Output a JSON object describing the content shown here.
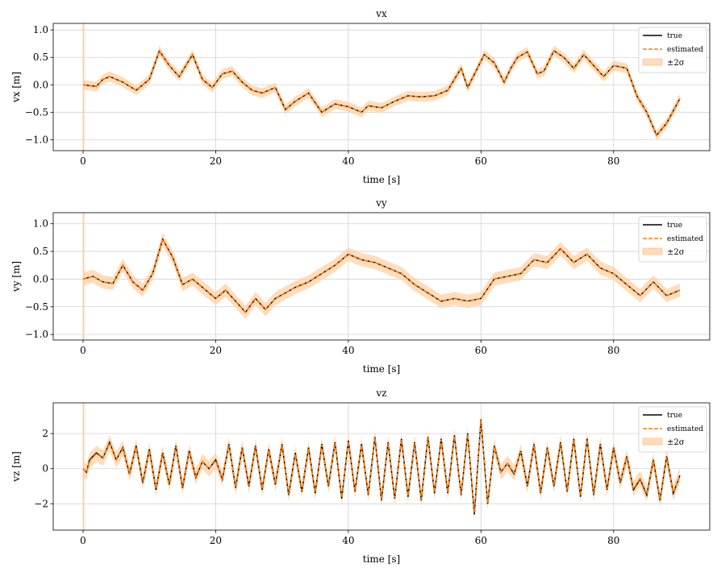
{
  "figure": {
    "background": "#ffffff"
  },
  "legend_labels": {
    "true": "true",
    "estimated": "estimated",
    "band": "±2σ"
  },
  "colors": {
    "true": "#000000",
    "estimated": "#ff7f0e",
    "band": "#ffcf9f",
    "grid": "#d3d3d3"
  },
  "chart_data": [
    {
      "type": "line",
      "title": "vx",
      "xlabel": "time [s]",
      "ylabel": "vx [m]",
      "xlim": [
        -4.5,
        94.5
      ],
      "ylim": [
        -1.2,
        1.12
      ],
      "xticks": [
        0,
        20,
        40,
        60,
        80
      ],
      "xtick_labels": [
        "0",
        "20",
        "40",
        "60",
        "80"
      ],
      "yticks": [
        -1.0,
        -0.5,
        0.0,
        0.5,
        1.0
      ],
      "ytick_labels": [
        "−1.0",
        "−0.5",
        "0.0",
        "0.5",
        "1.0"
      ],
      "grid": true,
      "legend": "top-right",
      "band_halfwidth": 0.09,
      "series": [
        {
          "name": "true",
          "style": "solid",
          "x": [
            0,
            2,
            3,
            4,
            6,
            8,
            10,
            11.5,
            13,
            14.5,
            16.5,
            18,
            19.5,
            21,
            22.5,
            24,
            25.5,
            27,
            29,
            30.5,
            32,
            34,
            36,
            38,
            40,
            42,
            43,
            45,
            47,
            49,
            51,
            53,
            55,
            56,
            57,
            58,
            60.5,
            62,
            63.5,
            64.5,
            65.5,
            67,
            68.5,
            69.5,
            71,
            72.5,
            74,
            75.5,
            77,
            78.5,
            80,
            82,
            83.5,
            85,
            86.5,
            88,
            90
          ],
          "y": [
            0,
            -0.03,
            0.1,
            0.15,
            0.05,
            -0.1,
            0.1,
            0.62,
            0.35,
            0.15,
            0.55,
            0.1,
            -0.05,
            0.2,
            0.25,
            0.05,
            -0.1,
            -0.15,
            -0.05,
            -0.45,
            -0.3,
            -0.15,
            -0.5,
            -0.35,
            -0.4,
            -0.5,
            -0.38,
            -0.42,
            -0.3,
            -0.2,
            -0.22,
            -0.2,
            -0.1,
            0.1,
            0.3,
            -0.05,
            0.55,
            0.4,
            0.05,
            0.3,
            0.5,
            0.6,
            0.2,
            0.25,
            0.62,
            0.5,
            0.3,
            0.55,
            0.35,
            0.15,
            0.35,
            0.3,
            -0.2,
            -0.5,
            -0.92,
            -0.7,
            -0.25
          ]
        },
        {
          "name": "estimated",
          "style": "dashed",
          "x": [
            0,
            2,
            3,
            4,
            6,
            8,
            10,
            11.5,
            13,
            14.5,
            16.5,
            18,
            19.5,
            21,
            22.5,
            24,
            25.5,
            27,
            29,
            30.5,
            32,
            34,
            36,
            38,
            40,
            42,
            43,
            45,
            47,
            49,
            51,
            53,
            55,
            56,
            57,
            58,
            60.5,
            62,
            63.5,
            64.5,
            65.5,
            67,
            68.5,
            69.5,
            71,
            72.5,
            74,
            75.5,
            77,
            78.5,
            80,
            82,
            83.5,
            85,
            86.5,
            88,
            90
          ],
          "y": [
            0,
            -0.03,
            0.1,
            0.15,
            0.05,
            -0.1,
            0.1,
            0.62,
            0.35,
            0.15,
            0.55,
            0.1,
            -0.05,
            0.2,
            0.25,
            0.05,
            -0.1,
            -0.15,
            -0.05,
            -0.45,
            -0.3,
            -0.15,
            -0.5,
            -0.35,
            -0.4,
            -0.5,
            -0.38,
            -0.42,
            -0.3,
            -0.2,
            -0.22,
            -0.2,
            -0.1,
            0.1,
            0.3,
            -0.05,
            0.55,
            0.4,
            0.05,
            0.3,
            0.5,
            0.6,
            0.2,
            0.25,
            0.62,
            0.5,
            0.3,
            0.55,
            0.35,
            0.15,
            0.35,
            0.3,
            -0.2,
            -0.5,
            -0.92,
            -0.7,
            -0.25
          ]
        }
      ]
    },
    {
      "type": "line",
      "title": "vy",
      "xlabel": "time [s]",
      "ylabel": "vy [m]",
      "xlim": [
        -4.5,
        94.5
      ],
      "ylim": [
        -1.1,
        1.2
      ],
      "xticks": [
        0,
        20,
        40,
        60,
        80
      ],
      "xtick_labels": [
        "0",
        "20",
        "40",
        "60",
        "80"
      ],
      "yticks": [
        -1.0,
        -0.5,
        0.0,
        0.5,
        1.0
      ],
      "ytick_labels": [
        "−1.0",
        "−0.5",
        "0.0",
        "0.5",
        "1.0"
      ],
      "grid": true,
      "legend": "top-right",
      "band_halfwidth": 0.12,
      "series": [
        {
          "name": "true",
          "style": "solid",
          "x": [
            0,
            1.5,
            3,
            4.5,
            6,
            7.5,
            9,
            10.5,
            12,
            13.5,
            15,
            16.5,
            18,
            20,
            21.5,
            23,
            24.5,
            26,
            27.5,
            29,
            30.5,
            32,
            34,
            36,
            38,
            40,
            42,
            44,
            46,
            48,
            50,
            52,
            54,
            56,
            58,
            60,
            62,
            64,
            66,
            68,
            70,
            72,
            74,
            76,
            78,
            80,
            82,
            84,
            86,
            88,
            90
          ],
          "y": [
            0,
            0.05,
            -0.05,
            -0.08,
            0.25,
            -0.05,
            -0.2,
            0.1,
            0.72,
            0.4,
            -0.1,
            0.0,
            -0.15,
            -0.35,
            -0.2,
            -0.4,
            -0.6,
            -0.35,
            -0.55,
            -0.35,
            -0.25,
            -0.15,
            -0.05,
            0.1,
            0.25,
            0.45,
            0.35,
            0.3,
            0.2,
            0.1,
            -0.1,
            -0.25,
            -0.4,
            -0.35,
            -0.4,
            -0.35,
            0.0,
            0.05,
            0.1,
            0.35,
            0.3,
            0.55,
            0.3,
            0.45,
            0.2,
            0.1,
            -0.1,
            -0.3,
            -0.05,
            -0.3,
            -0.2
          ]
        },
        {
          "name": "estimated",
          "style": "dashed",
          "x": [
            0,
            1.5,
            3,
            4.5,
            6,
            7.5,
            9,
            10.5,
            12,
            13.5,
            15,
            16.5,
            18,
            20,
            21.5,
            23,
            24.5,
            26,
            27.5,
            29,
            30.5,
            32,
            34,
            36,
            38,
            40,
            42,
            44,
            46,
            48,
            50,
            52,
            54,
            56,
            58,
            60,
            62,
            64,
            66,
            68,
            70,
            72,
            74,
            76,
            78,
            80,
            82,
            84,
            86,
            88,
            90
          ],
          "y": [
            0,
            0.05,
            -0.05,
            -0.08,
            0.25,
            -0.05,
            -0.2,
            0.1,
            0.72,
            0.4,
            -0.1,
            0.0,
            -0.15,
            -0.35,
            -0.2,
            -0.4,
            -0.6,
            -0.35,
            -0.55,
            -0.35,
            -0.25,
            -0.15,
            -0.05,
            0.1,
            0.25,
            0.45,
            0.35,
            0.3,
            0.2,
            0.1,
            -0.1,
            -0.25,
            -0.4,
            -0.35,
            -0.4,
            -0.35,
            0.0,
            0.05,
            0.1,
            0.35,
            0.3,
            0.55,
            0.3,
            0.45,
            0.2,
            0.1,
            -0.1,
            -0.3,
            -0.05,
            -0.3,
            -0.2
          ]
        }
      ]
    },
    {
      "type": "line",
      "title": "vz",
      "xlabel": "time [s]",
      "ylabel": "vz [m]",
      "xlim": [
        -4.5,
        94.5
      ],
      "ylim": [
        -3.5,
        3.75
      ],
      "xticks": [
        0,
        20,
        40,
        60,
        80
      ],
      "xtick_labels": [
        "0",
        "20",
        "40",
        "60",
        "80"
      ],
      "yticks": [
        -2,
        0,
        2
      ],
      "ytick_labels": [
        "−2",
        "0",
        "2"
      ],
      "grid": true,
      "legend": "top-right",
      "band_halfwidth": 0.45,
      "series": [
        {
          "name": "true",
          "style": "solid",
          "x": [
            0,
            0.5,
            1,
            2,
            3,
            4,
            5,
            6,
            7,
            8,
            9,
            10,
            11,
            12,
            13,
            14,
            15,
            16,
            17,
            18,
            19,
            20,
            21,
            22,
            23,
            24,
            25,
            26,
            27,
            28,
            29,
            30,
            31,
            32,
            33,
            34,
            35,
            36,
            37,
            38,
            39,
            40,
            41,
            42,
            43,
            44,
            45,
            46,
            47,
            48,
            49,
            50,
            51,
            52,
            53,
            54,
            55,
            56,
            57,
            58,
            59,
            60,
            61,
            62,
            63,
            64,
            65,
            66,
            67,
            68,
            69,
            70,
            71,
            72,
            73,
            74,
            75,
            76,
            77,
            78,
            79,
            80,
            81,
            82,
            83,
            84,
            85,
            86,
            87,
            88,
            89,
            90
          ],
          "y": [
            0,
            -0.2,
            0.5,
            0.9,
            0.6,
            1.5,
            0.5,
            1.2,
            -0.3,
            1.3,
            -0.8,
            1.1,
            -1.2,
            0.9,
            -0.9,
            1.3,
            -1.1,
            1.0,
            -0.5,
            0.4,
            0.0,
            0.5,
            -0.6,
            1.4,
            -1.1,
            1.2,
            -1.0,
            1.3,
            -1.2,
            1.1,
            -0.9,
            1.4,
            -1.5,
            0.9,
            -1.3,
            1.2,
            -1.4,
            1.4,
            -1.0,
            1.5,
            -1.7,
            1.6,
            -1.3,
            1.4,
            -1.5,
            1.8,
            -1.8,
            1.5,
            -1.7,
            1.7,
            -1.6,
            1.5,
            -1.8,
            1.8,
            -1.4,
            1.7,
            -1.4,
            1.9,
            -1.5,
            2.0,
            -2.6,
            2.8,
            -2.0,
            1.3,
            -0.2,
            0.3,
            -0.3,
            1.0,
            -1.0,
            1.4,
            -1.4,
            1.2,
            -1.0,
            1.5,
            -1.3,
            1.7,
            -1.6,
            1.7,
            -1.5,
            1.4,
            -1.2,
            1.2,
            -0.8,
            0.7,
            -1.2,
            -0.6,
            -1.5,
            0.5,
            -1.8,
            0.7,
            -1.4,
            -0.4
          ]
        },
        {
          "name": "estimated",
          "style": "dashed",
          "x": [
            0,
            0.5,
            1,
            2,
            3,
            4,
            5,
            6,
            7,
            8,
            9,
            10,
            11,
            12,
            13,
            14,
            15,
            16,
            17,
            18,
            19,
            20,
            21,
            22,
            23,
            24,
            25,
            26,
            27,
            28,
            29,
            30,
            31,
            32,
            33,
            34,
            35,
            36,
            37,
            38,
            39,
            40,
            41,
            42,
            43,
            44,
            45,
            46,
            47,
            48,
            49,
            50,
            51,
            52,
            53,
            54,
            55,
            56,
            57,
            58,
            59,
            60,
            61,
            62,
            63,
            64,
            65,
            66,
            67,
            68,
            69,
            70,
            71,
            72,
            73,
            74,
            75,
            76,
            77,
            78,
            79,
            80,
            81,
            82,
            83,
            84,
            85,
            86,
            87,
            88,
            89,
            90
          ],
          "y": [
            0,
            -0.2,
            0.45,
            0.85,
            0.6,
            1.45,
            0.5,
            1.15,
            -0.25,
            1.25,
            -0.75,
            1.05,
            -1.15,
            0.85,
            -0.85,
            1.25,
            -1.05,
            0.95,
            -0.45,
            0.4,
            0.0,
            0.45,
            -0.55,
            1.35,
            -1.05,
            1.15,
            -0.95,
            1.25,
            -1.15,
            1.05,
            -0.85,
            1.35,
            -1.45,
            0.85,
            -1.25,
            1.15,
            -1.35,
            1.35,
            -0.95,
            1.45,
            -1.65,
            1.55,
            -1.25,
            1.35,
            -1.45,
            1.75,
            -1.75,
            1.45,
            -1.65,
            1.65,
            -1.55,
            1.45,
            -1.75,
            1.75,
            -1.35,
            1.65,
            -1.35,
            1.85,
            -1.45,
            1.95,
            -2.5,
            2.75,
            -1.95,
            1.25,
            -0.2,
            0.3,
            -0.25,
            0.95,
            -0.95,
            1.35,
            -1.35,
            1.15,
            -0.95,
            1.45,
            -1.25,
            1.65,
            -1.55,
            1.65,
            -1.45,
            1.35,
            -1.15,
            1.15,
            -0.75,
            0.65,
            -1.15,
            -0.55,
            -1.45,
            0.45,
            -1.75,
            0.65,
            -1.35,
            -0.4
          ]
        }
      ]
    }
  ]
}
